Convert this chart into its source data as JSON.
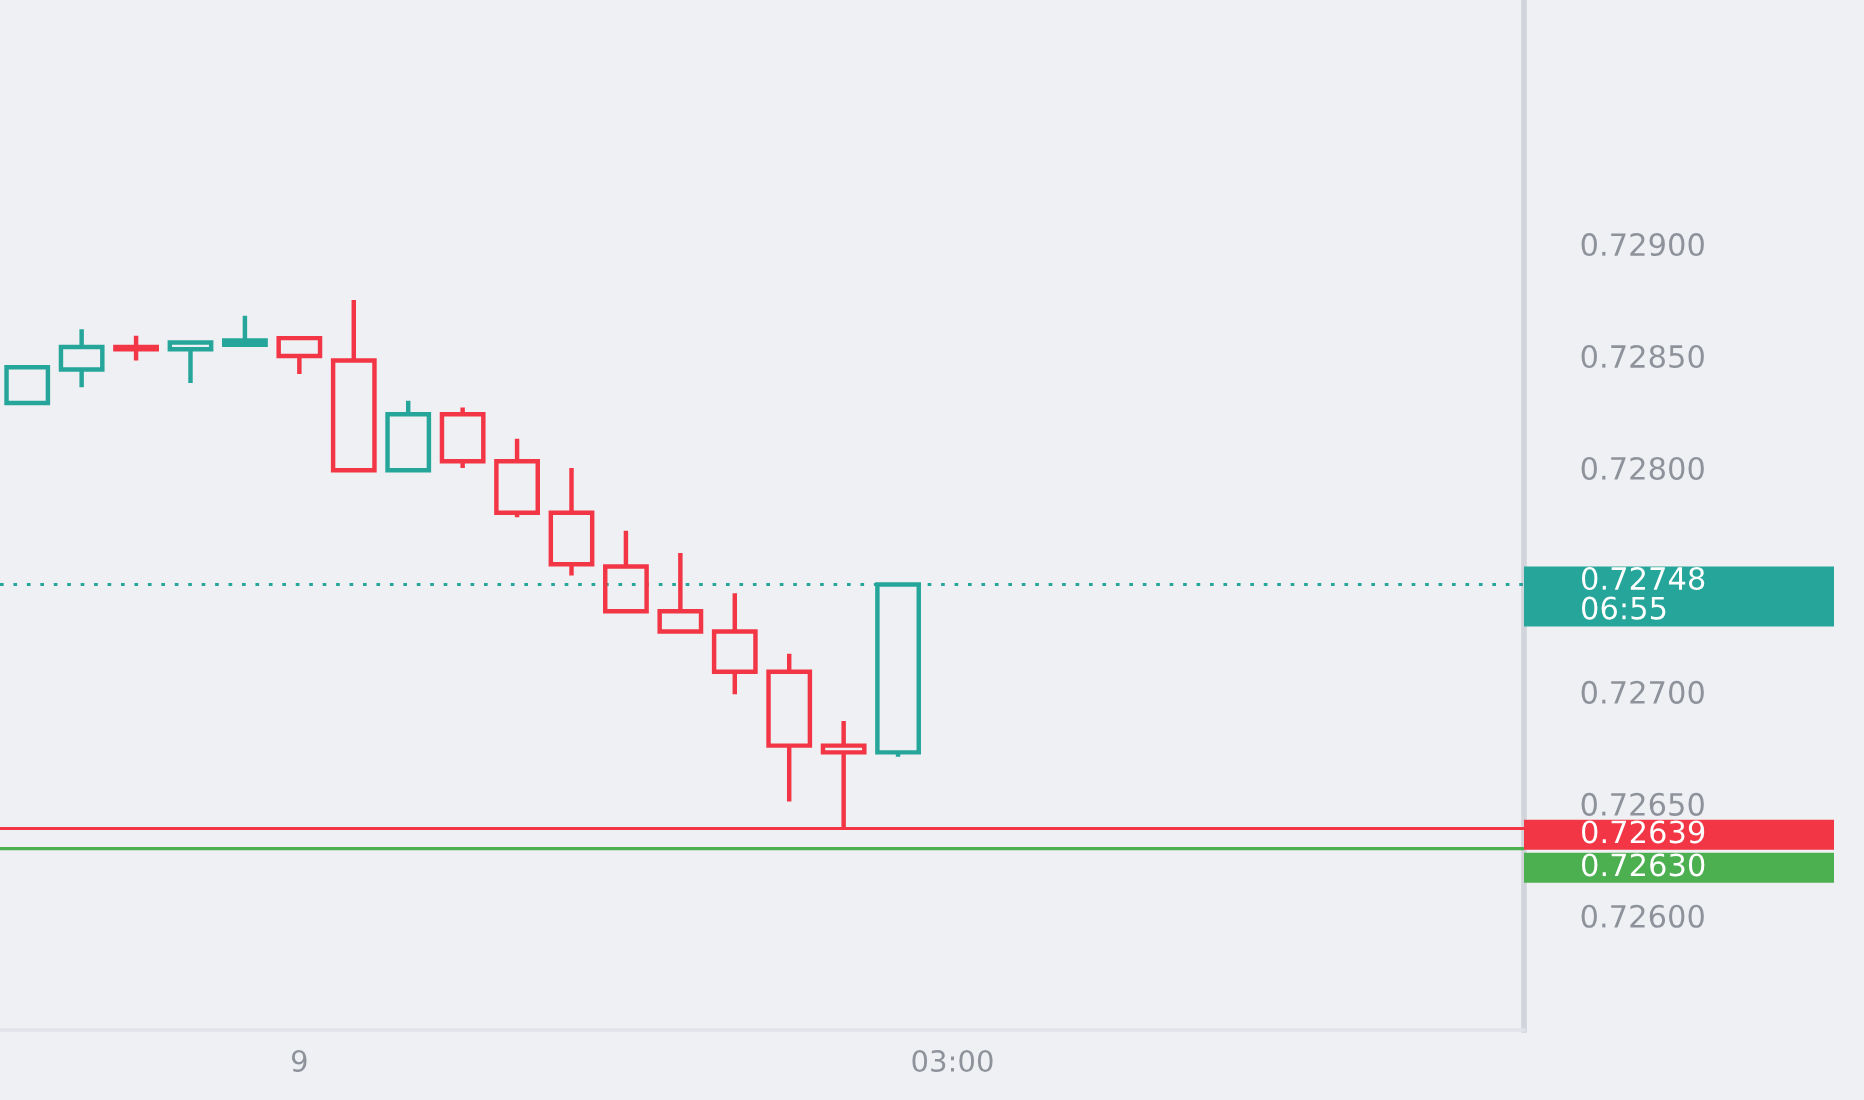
{
  "chart_data": {
    "type": "candlestick",
    "categories": [
      null,
      null,
      null,
      null,
      null,
      "9",
      null,
      null,
      null,
      null,
      null,
      null,
      null,
      null,
      null,
      null,
      null,
      "03:00",
      null,
      null,
      null,
      null,
      null,
      null,
      null,
      null,
      null,
      null
    ],
    "ohlc": [
      [
        0.72829,
        0.72845,
        0.72829,
        0.72845
      ],
      [
        0.72844,
        0.72862,
        0.72836,
        0.72854
      ],
      [
        0.72854,
        0.72859,
        0.72848,
        0.72853
      ],
      [
        0.72853,
        0.72856,
        0.72838,
        0.72856
      ],
      [
        0.72855,
        0.72868,
        0.72854,
        0.72857
      ],
      [
        0.72858,
        0.72858,
        0.72842,
        0.7285
      ],
      [
        0.72848,
        0.72875,
        0.72798,
        0.72799
      ],
      [
        0.72799,
        0.7283,
        0.72799,
        0.72824
      ],
      [
        0.72824,
        0.72827,
        0.728,
        0.72803
      ],
      [
        0.72803,
        0.72813,
        0.72778,
        0.7278
      ],
      [
        0.7278,
        0.728,
        0.72752,
        0.72757
      ],
      [
        0.72756,
        0.72772,
        0.72736,
        0.72736
      ],
      [
        0.72736,
        0.72762,
        0.72726,
        0.72727
      ],
      [
        0.72727,
        0.72744,
        0.72699,
        0.72709
      ],
      [
        0.72709,
        0.72717,
        0.72651,
        0.72676
      ],
      [
        0.72676,
        0.72687,
        0.72639,
        0.72673
      ],
      [
        0.72673,
        0.72748,
        0.72671,
        0.72748
      ],
      null,
      null,
      null,
      null,
      null,
      null,
      null,
      null,
      null,
      null,
      null
    ],
    "colors": [
      "#26a69a",
      "#26a69a",
      "#f23645",
      "#26a69a",
      "#26a69a",
      "#f23645",
      "#f23645",
      "#26a69a",
      "#f23645",
      "#f23645",
      "#f23645",
      "#f23645",
      "#f23645",
      "#f23645",
      "#f23645",
      "#f23645",
      "#26a69a",
      null,
      null,
      null,
      null,
      null,
      null,
      null,
      null,
      null,
      null,
      null
    ],
    "ylim": [
      0.72549,
      0.73009
    ],
    "yticks": [
      {
        "value": 0.726,
        "label": "0.72600"
      },
      {
        "value": 0.7265,
        "label": "0.72650"
      },
      {
        "value": 0.727,
        "label": "0.72700"
      },
      {
        "value": 0.728,
        "label": "0.72800"
      },
      {
        "value": 0.7285,
        "label": "0.72850"
      },
      {
        "value": 0.729,
        "label": "0.72900"
      }
    ],
    "ref_lines": [
      {
        "axis": "y",
        "value": 0.72748,
        "label": "0.72748\n06:55",
        "color": "#26a69a",
        "line_style": "dotted"
      },
      {
        "axis": "y",
        "value": 0.72639,
        "label": "0.72639",
        "color": "#f23645",
        "line_style": "solid"
      },
      {
        "axis": "y",
        "value": 0.7263,
        "label": "0.72630",
        "color": "#4caf50",
        "line_style": "solid"
      }
    ],
    "grid": false
  }
}
